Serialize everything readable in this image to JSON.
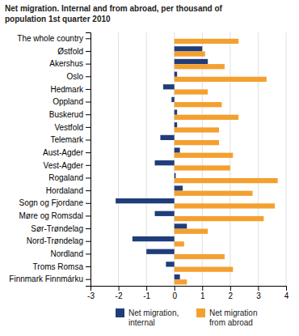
{
  "chart_data": {
    "type": "bar",
    "orientation": "horizontal",
    "title": "Net migration. Internal and from abroad, per thousand of\npopulation 1st quarter 2010",
    "categories": [
      "The whole country",
      "Østfold",
      "Akershus",
      "Oslo",
      "Hedmark",
      "Oppland",
      "Buskerud",
      "Vestfold",
      "Telemark",
      "Aust-Agder",
      "Vest-Agder",
      "Rogaland",
      "Hordaland",
      "Sogn og Fjordane",
      "Møre og Romsdal",
      "Sør-Trøndelag",
      "Nord-Trøndelag",
      "Nordland",
      "Troms Romsa",
      "Finnmark Finnmárku"
    ],
    "series": [
      {
        "name": "Net migration,\ninternal",
        "color": "#1f3d7a",
        "values": [
          0.0,
          1.0,
          1.2,
          0.1,
          -0.4,
          -0.1,
          0.1,
          0.1,
          -0.5,
          0.2,
          -0.7,
          0.05,
          0.3,
          -2.1,
          -0.7,
          0.45,
          -1.5,
          -1.0,
          -0.3,
          0.2
        ]
      },
      {
        "name": "Net migration\nfrom abroad",
        "color": "#f4a030",
        "values": [
          2.3,
          1.1,
          1.8,
          3.3,
          1.2,
          1.7,
          2.3,
          1.6,
          1.6,
          2.1,
          2.0,
          3.7,
          2.8,
          3.6,
          3.2,
          1.2,
          0.35,
          1.8,
          2.1,
          0.45
        ]
      }
    ],
    "xlim": [
      -3,
      4
    ],
    "xticks": [
      -3,
      -2,
      -1,
      0,
      1,
      2,
      3,
      4
    ],
    "grid": true,
    "legend": "bottom"
  }
}
